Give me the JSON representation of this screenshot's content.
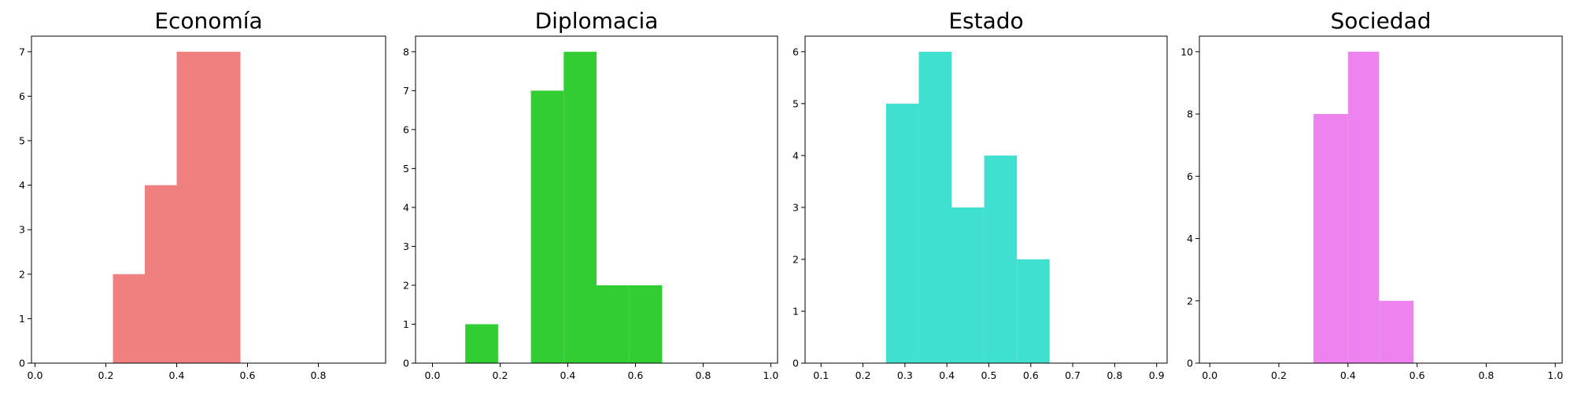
{
  "chart_data": [
    {
      "type": "bar",
      "title": "Economía",
      "color": "#F08080",
      "xlim": [
        -0.01,
        0.99
      ],
      "ylim": [
        0,
        7.35
      ],
      "xticks": [
        0.0,
        0.2,
        0.4,
        0.6,
        0.8
      ],
      "xtick_labels": [
        "0.0",
        "0.2",
        "0.4",
        "0.6",
        "0.8"
      ],
      "yticks": [
        0,
        1,
        2,
        3,
        4,
        5,
        6,
        7
      ],
      "ytick_labels": [
        "0",
        "1",
        "2",
        "3",
        "4",
        "5",
        "6",
        "7"
      ],
      "bins": [
        {
          "x0": 0.22,
          "x1": 0.31,
          "count": 2
        },
        {
          "x0": 0.31,
          "x1": 0.4,
          "count": 4
        },
        {
          "x0": 0.4,
          "x1": 0.49,
          "count": 7
        },
        {
          "x0": 0.49,
          "x1": 0.58,
          "count": 7
        }
      ]
    },
    {
      "type": "bar",
      "title": "Diplomacia",
      "color": "#32CD32",
      "xlim": [
        -0.05,
        1.02
      ],
      "ylim": [
        0,
        8.4
      ],
      "xticks": [
        0.0,
        0.2,
        0.4,
        0.6,
        0.8,
        1.0
      ],
      "xtick_labels": [
        "0.0",
        "0.2",
        "0.4",
        "0.6",
        "0.8",
        "1.0"
      ],
      "yticks": [
        0,
        1,
        2,
        3,
        4,
        5,
        6,
        7,
        8
      ],
      "ytick_labels": [
        "0",
        "1",
        "2",
        "3",
        "4",
        "5",
        "6",
        "7",
        "8"
      ],
      "bins": [
        {
          "x0": 0.097,
          "x1": 0.194,
          "count": 1
        },
        {
          "x0": 0.194,
          "x1": 0.291,
          "count": 0
        },
        {
          "x0": 0.291,
          "x1": 0.388,
          "count": 7
        },
        {
          "x0": 0.388,
          "x1": 0.485,
          "count": 8
        },
        {
          "x0": 0.485,
          "x1": 0.582,
          "count": 2
        },
        {
          "x0": 0.582,
          "x1": 0.679,
          "count": 2
        }
      ]
    },
    {
      "type": "bar",
      "title": "Estado",
      "color": "#40E0D0",
      "xlim": [
        0.062,
        0.925
      ],
      "ylim": [
        0,
        6.3
      ],
      "xticks": [
        0.1,
        0.2,
        0.3,
        0.4,
        0.5,
        0.6,
        0.7,
        0.8,
        0.9
      ],
      "xtick_labels": [
        "0.1",
        "0.2",
        "0.3",
        "0.4",
        "0.5",
        "0.6",
        "0.7",
        "0.8",
        "0.9"
      ],
      "yticks": [
        0,
        1,
        2,
        3,
        4,
        5,
        6
      ],
      "ytick_labels": [
        "0",
        "1",
        "2",
        "3",
        "4",
        "5",
        "6"
      ],
      "bins": [
        {
          "x0": 0.255,
          "x1": 0.333,
          "count": 5
        },
        {
          "x0": 0.333,
          "x1": 0.411,
          "count": 6
        },
        {
          "x0": 0.411,
          "x1": 0.489,
          "count": 3
        },
        {
          "x0": 0.489,
          "x1": 0.567,
          "count": 4
        },
        {
          "x0": 0.567,
          "x1": 0.645,
          "count": 2
        }
      ]
    },
    {
      "type": "bar",
      "title": "Sociedad",
      "color": "#EE82EE",
      "xlim": [
        -0.03,
        1.02
      ],
      "ylim": [
        0,
        10.5
      ],
      "xticks": [
        0.0,
        0.2,
        0.4,
        0.6,
        0.8,
        1.0
      ],
      "xtick_labels": [
        "0.0",
        "0.2",
        "0.4",
        "0.6",
        "0.8",
        "1.0"
      ],
      "yticks": [
        0,
        2,
        4,
        6,
        8,
        10
      ],
      "ytick_labels": [
        "0",
        "2",
        "4",
        "6",
        "8",
        "10"
      ],
      "bins": [
        {
          "x0": 0.3,
          "x1": 0.4,
          "count": 8
        },
        {
          "x0": 0.4,
          "x1": 0.49,
          "count": 10
        },
        {
          "x0": 0.49,
          "x1": 0.59,
          "count": 2
        }
      ]
    }
  ]
}
